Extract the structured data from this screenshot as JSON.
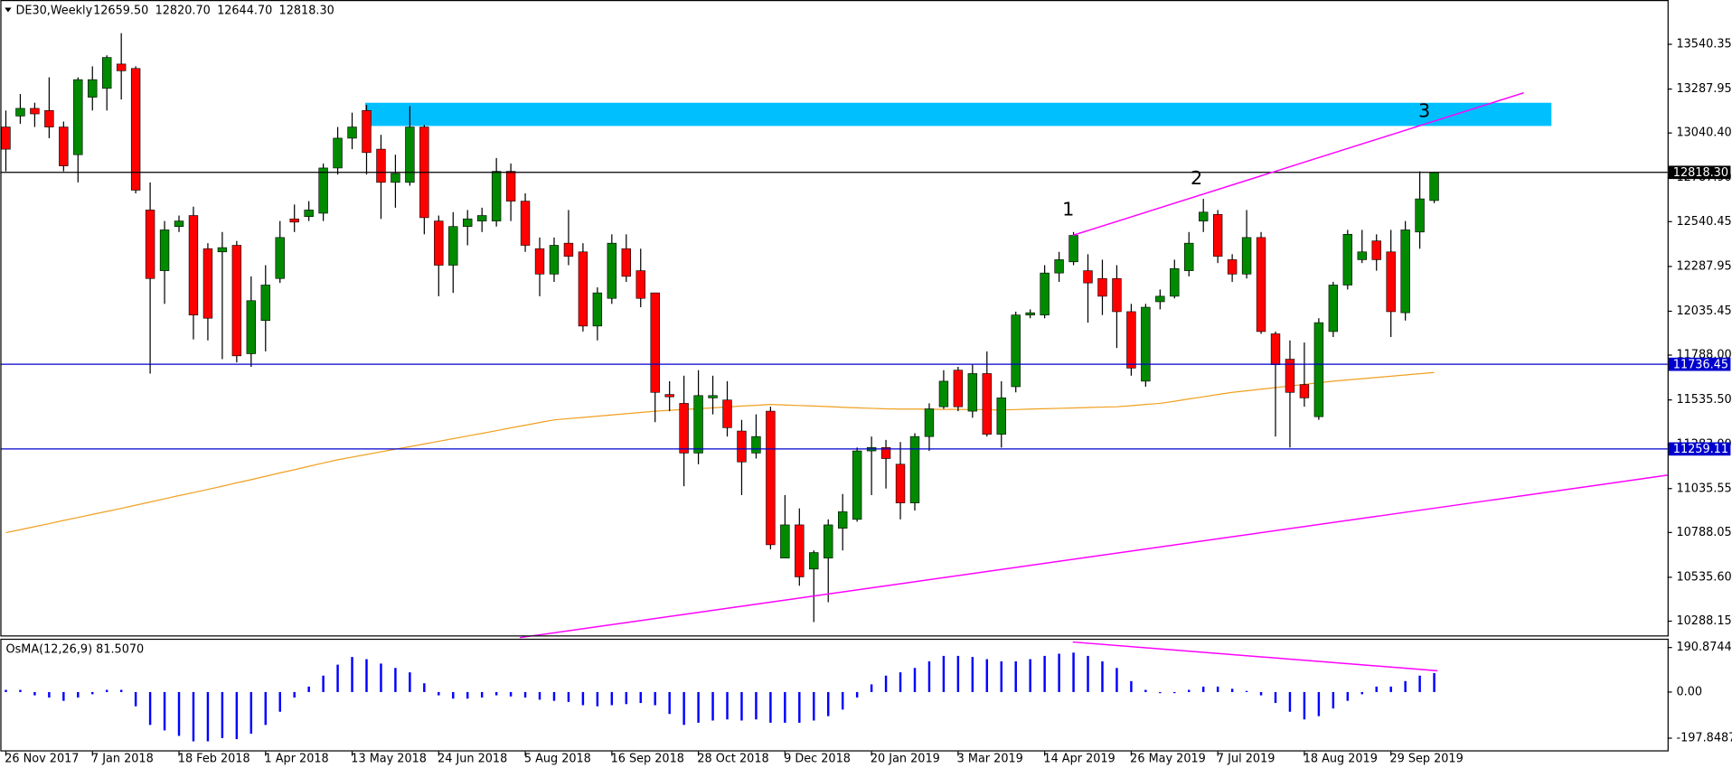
{
  "chart_data": [
    {
      "type": "candlestick",
      "title": "DE30,Weekly",
      "title_values": [
        "12659.50",
        "12820.70",
        "12644.70",
        "12818.30"
      ],
      "categories": [
        "26 Nov 2017",
        null,
        null,
        null,
        null,
        null,
        "7 Jan 2018",
        null,
        null,
        null,
        null,
        null,
        "18 Feb 2018",
        null,
        null,
        null,
        null,
        null,
        "1 Apr 2018",
        null,
        null,
        null,
        null,
        null,
        "13 May 2018",
        null,
        null,
        null,
        null,
        null,
        "24 Jun 2018",
        null,
        null,
        null,
        null,
        null,
        "5 Aug 2018",
        null,
        null,
        null,
        null,
        null,
        "16 Sep 2018",
        null,
        null,
        null,
        null,
        null,
        "28 Oct 2018",
        null,
        null,
        null,
        null,
        null,
        "9 Dec 2018",
        null,
        null,
        null,
        null,
        null,
        "20 Jan 2019",
        null,
        null,
        null,
        null,
        null,
        "3 Mar 2019",
        null,
        null,
        null,
        null,
        null,
        "14 Apr 2019",
        null,
        null,
        null,
        null,
        null,
        "26 May 2019",
        null,
        null,
        null,
        null,
        null,
        "7 Jul 2019",
        null,
        null,
        null,
        null,
        null,
        "18 Aug 2019",
        null,
        null,
        null,
        null,
        null,
        "29 Sep 2019",
        null,
        null,
        null
      ],
      "open": [
        13074,
        13136,
        13179,
        13167,
        13074,
        12918,
        13242,
        13292,
        13429,
        13404,
        12606,
        12264,
        12513,
        12575,
        12388,
        12370,
        12407,
        11796,
        11983,
        12220,
        12556,
        12569,
        12588,
        12843,
        13011,
        13167,
        12949,
        12762,
        12762,
        13074,
        12544,
        12295,
        12513,
        12544,
        12544,
        12824,
        12656,
        12388,
        12245,
        12419,
        12370,
        11952,
        12108,
        12388,
        12264,
        12139,
        11566,
        11516,
        11236,
        11547,
        11535,
        11360,
        11236,
        11472,
        10644,
        10831,
        10582,
        10644,
        10812,
        10862,
        11248,
        11267,
        11173,
        10955,
        11329,
        11497,
        11703,
        11472,
        11684,
        11342,
        11610,
        12014,
        12014,
        12251,
        12314,
        12264,
        12220,
        12220,
        12033,
        11641,
        12089,
        12120,
        12264,
        12544,
        12581,
        12326,
        12245,
        12451,
        11908,
        11765,
        11622,
        11441,
        11921,
        12183,
        12326,
        12432,
        12370,
        12027,
        12482,
        12659.5
      ],
      "high": [
        13167,
        13260,
        13211,
        13354,
        13105,
        13354,
        13416,
        13478,
        13603,
        13416,
        12762,
        12544,
        12575,
        12625,
        12419,
        12482,
        12432,
        12232,
        12295,
        12544,
        12637,
        12656,
        12868,
        13074,
        13155,
        13198,
        13030,
        12918,
        13192,
        13086,
        12575,
        12594,
        12606,
        12619,
        12899,
        12868,
        12700,
        12451,
        12451,
        12606,
        12419,
        12170,
        12469,
        12469,
        12388,
        12139,
        11641,
        11672,
        11703,
        11672,
        11641,
        11423,
        11454,
        11497,
        10999,
        10924,
        10687,
        10862,
        11005,
        11267,
        11329,
        11310,
        11298,
        11348,
        11516,
        11703,
        11722,
        11734,
        11809,
        11641,
        12033,
        12046,
        12295,
        12370,
        12482,
        12357,
        12326,
        12295,
        12077,
        12077,
        12158,
        12326,
        12482,
        12669,
        12606,
        12357,
        12606,
        12482,
        11921,
        11871,
        11859,
        11996,
        12201,
        12494,
        12494,
        12469,
        12494,
        12544,
        12824,
        12820.7
      ],
      "low": [
        12824,
        13092,
        13074,
        13011,
        12824,
        12762,
        13167,
        13167,
        13229,
        12700,
        11684,
        12077,
        12482,
        11877,
        11871,
        11765,
        11747,
        11722,
        11809,
        12195,
        12482,
        12544,
        12544,
        12806,
        12949,
        12806,
        12556,
        12619,
        12743,
        12469,
        12120,
        12139,
        12407,
        12482,
        12513,
        12544,
        12370,
        12120,
        12201,
        12295,
        11921,
        11871,
        12077,
        12201,
        12058,
        11410,
        11472,
        11049,
        11173,
        11454,
        11329,
        10999,
        11205,
        10694,
        10644,
        10488,
        10283,
        10395,
        10687,
        10849,
        10999,
        11036,
        10862,
        10912,
        11248,
        11485,
        11472,
        11435,
        11329,
        11267,
        11578,
        11996,
        11996,
        12201,
        12295,
        11971,
        12014,
        11828,
        11672,
        11610,
        12046,
        12108,
        12232,
        12482,
        12307,
        12201,
        12220,
        11908,
        11329,
        11267,
        11497,
        11423,
        11890,
        12158,
        12307,
        12264,
        11890,
        11983,
        12388,
        12644.7
      ],
      "close": [
        12949,
        13179,
        13148,
        13074,
        12855,
        13341,
        13341,
        13466,
        13391,
        12718,
        12220,
        12494,
        12544,
        12014,
        11996,
        12394,
        11784,
        12095,
        12183,
        12451,
        12538,
        12606,
        12843,
        13011,
        13074,
        12930,
        12762,
        12812,
        13074,
        12563,
        12295,
        12513,
        12556,
        12575,
        12824,
        12656,
        12407,
        12245,
        12407,
        12345,
        11952,
        12139,
        12419,
        12232,
        12108,
        11578,
        11553,
        11236,
        11560,
        11560,
        11379,
        11186,
        11329,
        10719,
        10831,
        10538,
        10675,
        10831,
        10905,
        11248,
        11267,
        11205,
        10955,
        11329,
        11485,
        11641,
        11497,
        11684,
        11342,
        11547,
        12014,
        12027,
        12251,
        12326,
        12463,
        12195,
        12120,
        12033,
        11715,
        12058,
        12120,
        12276,
        12419,
        12594,
        12345,
        12245,
        12451,
        11921,
        11734,
        11578,
        11547,
        11971,
        12183,
        12469,
        12370,
        12326,
        12033,
        12494,
        12669,
        12818.3
      ],
      "up_color": "#008a00",
      "down_color": "#ff0000",
      "ma": {
        "color": "#f0a020",
        "values": [
          10787,
          10804,
          10821,
          10838,
          10856,
          10873,
          10890,
          10907,
          10924,
          10942,
          10960,
          10978,
          10996,
          11013,
          11031,
          11049,
          11068,
          11086,
          11105,
          11124,
          11142,
          11161,
          11180,
          11198,
          11213,
          11228,
          11243,
          11258,
          11272,
          11287,
          11302,
          11317,
          11332,
          11347,
          11362,
          11378,
          11393,
          11408,
          11423,
          11430,
          11437,
          11444,
          11451,
          11458,
          11465,
          11472,
          11477,
          11482,
          11486,
          11491,
          11496,
          11501,
          11505,
          11510,
          11507,
          11504,
          11501,
          11498,
          11494,
          11491,
          11488,
          11485,
          11484,
          11484,
          11483,
          11482,
          11482,
          11481,
          11480,
          11479,
          11481,
          11484,
          11486,
          11488,
          11490,
          11493,
          11495,
          11497,
          11503,
          11510,
          11516,
          11528,
          11541,
          11553,
          11566,
          11578,
          11587,
          11596,
          11605,
          11614,
          11623,
          11632,
          11641,
          11648,
          11655,
          11662,
          11669,
          11676,
          11683,
          11690
        ]
      },
      "hlines": [
        {
          "value": 12818.3,
          "label": "12818.30",
          "color": "#000000"
        },
        {
          "value": 11736.45,
          "label": "11736.45",
          "color": "#0000cd"
        },
        {
          "value": 11259.11,
          "label": "11259.11",
          "color": "#0000cd"
        }
      ],
      "annotations": [
        "1",
        "2",
        "3"
      ],
      "ylim": [
        10208,
        13790
      ],
      "yticks": [
        {
          "value": 13540.35,
          "label": "13540.35"
        },
        {
          "value": 13287.95,
          "label": "13287.95"
        },
        {
          "value": 13040.4,
          "label": "13040.40"
        },
        {
          "value": 12787.9,
          "label": "12787.90"
        },
        {
          "value": 12540.45,
          "label": "12540.45"
        },
        {
          "value": 12287.95,
          "label": "12287.95"
        },
        {
          "value": 12035.45,
          "label": "12035.45"
        },
        {
          "value": 11788.0,
          "label": "11788.00"
        },
        {
          "value": 11535.5,
          "label": "11535.50"
        },
        {
          "value": 11283.0,
          "label": "11283.00"
        },
        {
          "value": 11035.55,
          "label": "11035.55"
        },
        {
          "value": 10788.05,
          "label": "10788.05"
        },
        {
          "value": 10535.6,
          "label": "10535.60"
        },
        {
          "value": 10288.15,
          "label": "10288.15"
        }
      ]
    },
    {
      "type": "bar",
      "title": "OsMA(12,26,9) 81.5070",
      "color": "#0000ff",
      "values": [
        9.4,
        9.4,
        -14.1,
        -23.5,
        -37.6,
        -23.5,
        -9.4,
        9.4,
        9.4,
        -61.1,
        -141,
        -164.5,
        -188,
        -211.5,
        -211.5,
        -197.4,
        -202.1,
        -178.6,
        -141,
        -84.6,
        -23.5,
        23.5,
        70.5,
        117.5,
        150.4,
        141,
        122.2,
        103.4,
        84.6,
        37.6,
        -14.1,
        -28.2,
        -28.2,
        -23.5,
        -14.1,
        -18.8,
        -23.5,
        -32.9,
        -37.6,
        -42.3,
        -56.4,
        -61.1,
        -56.4,
        -51.7,
        -47,
        -56.4,
        -94,
        -141,
        -131.6,
        -122.2,
        -117.5,
        -122.2,
        -117.5,
        -131.6,
        -131.6,
        -131.6,
        -122.2,
        -103.4,
        -75.2,
        -23.5,
        32.9,
        70.5,
        84.6,
        103.4,
        131.6,
        155.1,
        155.1,
        150.4,
        141,
        131.6,
        131.6,
        141,
        155.1,
        164.5,
        169.2,
        155.1,
        131.6,
        103.4,
        47,
        9.4,
        -4.7,
        -4.7,
        9.4,
        23.5,
        23.5,
        14.1,
        4.7,
        -14.1,
        -47,
        -84.6,
        -117.5,
        -103.4,
        -70.5,
        -37.6,
        -9.4,
        23.5,
        23.5,
        47,
        70.5,
        81.507
      ],
      "ylim": [
        -254.7,
        228.8
      ],
      "yticks": [
        {
          "value": 190.8744,
          "label": "190.8744"
        },
        {
          "value": 0,
          "label": "0.00"
        },
        {
          "value": -197.8487,
          "label": "-197.8487"
        }
      ]
    }
  ]
}
